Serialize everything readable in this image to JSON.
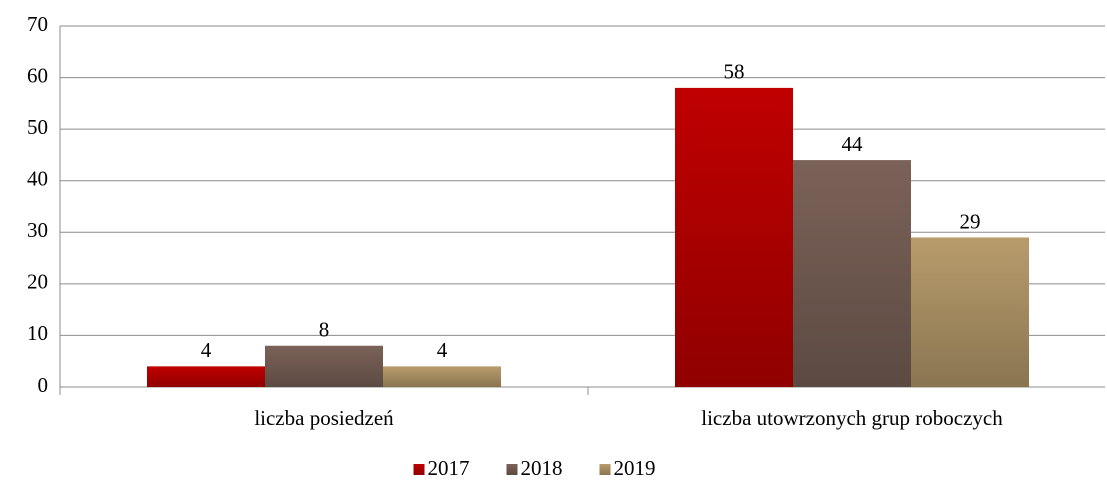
{
  "chart_data": {
    "type": "bar",
    "categories": [
      "liczba posiedzeń",
      "liczba utowrzonych grup roboczych"
    ],
    "series": [
      {
        "name": "2017",
        "color": "#c00000",
        "values": [
          4,
          58
        ]
      },
      {
        "name": "2018",
        "color": "#7b6258",
        "values": [
          8,
          44
        ]
      },
      {
        "name": "2019",
        "color": "#b89c6c",
        "values": [
          4,
          29
        ]
      }
    ],
    "ylim": [
      0,
      70
    ],
    "yticks": [
      0,
      10,
      20,
      30,
      40,
      50,
      60,
      70
    ],
    "grid": true,
    "legend": "bottom",
    "data_labels": true
  }
}
